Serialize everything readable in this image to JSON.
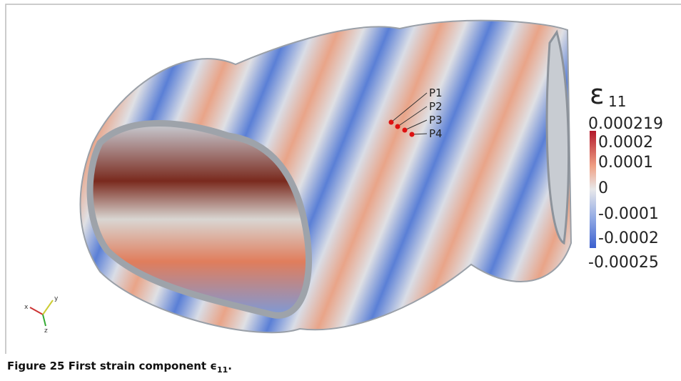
{
  "figure": {
    "point_labels": [
      "P1",
      "P2",
      "P3",
      "P4"
    ],
    "axes_labels": [
      "x",
      "y",
      "z"
    ],
    "colorbar": {
      "symbol": "ε",
      "subscript": "11",
      "labels": [
        "0.000219",
        "0.0002",
        "0.0001",
        "0",
        "-0.0001",
        "-0.0002",
        "-0.00025"
      ]
    },
    "caption": {
      "label": "Figure 25",
      "text": "First strain component",
      "symbol": "ϵ",
      "subscript": "11",
      "end": "."
    }
  }
}
